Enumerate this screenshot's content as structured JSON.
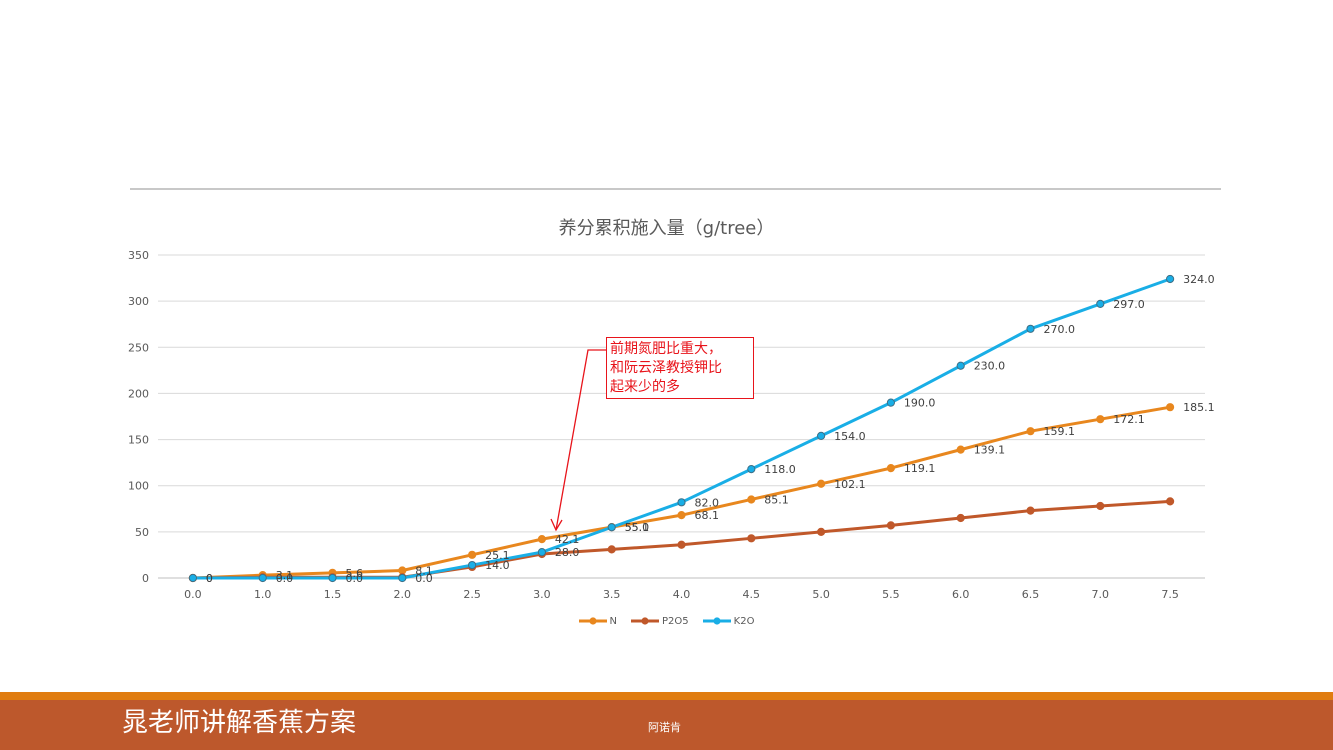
{
  "chart_data": {
    "type": "line",
    "title": "养分累积施入量（g/tree）",
    "x": [
      "0.0",
      "1.0",
      "1.5",
      "2.0",
      "2.5",
      "3.0",
      "3.5",
      "4.0",
      "4.5",
      "5.0",
      "5.5",
      "6.0",
      "6.5",
      "7.0",
      "7.5"
    ],
    "ylim": [
      0,
      350
    ],
    "yticks": [
      0,
      50,
      100,
      150,
      200,
      250,
      300,
      350
    ],
    "grid": true,
    "legend_position": "bottom",
    "series": [
      {
        "name": "N",
        "color": "#e8871e",
        "values": [
          0,
          3.1,
          5.6,
          8.1,
          25.1,
          42.1,
          55.1,
          68.1,
          85.1,
          102.1,
          119.1,
          139.1,
          159.1,
          172.1,
          185.1
        ],
        "labels": [
          "0",
          "3.1",
          "5.6",
          "8.1",
          "25.1",
          "42.1",
          "55.1",
          "68.1",
          "85.1",
          "102.1",
          "119.1",
          "139.1",
          "159.1",
          "172.1",
          "185.1"
        ]
      },
      {
        "name": "P2O5",
        "color": "#c0582a",
        "values": [
          0,
          0.8,
          0.8,
          0.8,
          12,
          26,
          31,
          36,
          43,
          50,
          57,
          65,
          73,
          78,
          83
        ],
        "labels": []
      },
      {
        "name": "K2O",
        "color": "#19aee6",
        "values": [
          0,
          0,
          0,
          0,
          14,
          28,
          55,
          82,
          118,
          154,
          190,
          230,
          270,
          297,
          324
        ],
        "labels": [
          "0",
          "0.0",
          "0.0",
          "0.0",
          "14.0",
          "28.0",
          "55.0",
          "82.0",
          "118.0",
          "154.0",
          "190.0",
          "230.0",
          "270.0",
          "297.0",
          "324.0"
        ]
      }
    ]
  },
  "annotation": {
    "lines": [
      "前期氮肥比重大，",
      "和阮云泽教授钾比",
      "起来少的多"
    ],
    "color": "#e8141b"
  },
  "footer": {
    "title": "晁老师讲解香蕉方案",
    "author": "阿诺肯"
  }
}
